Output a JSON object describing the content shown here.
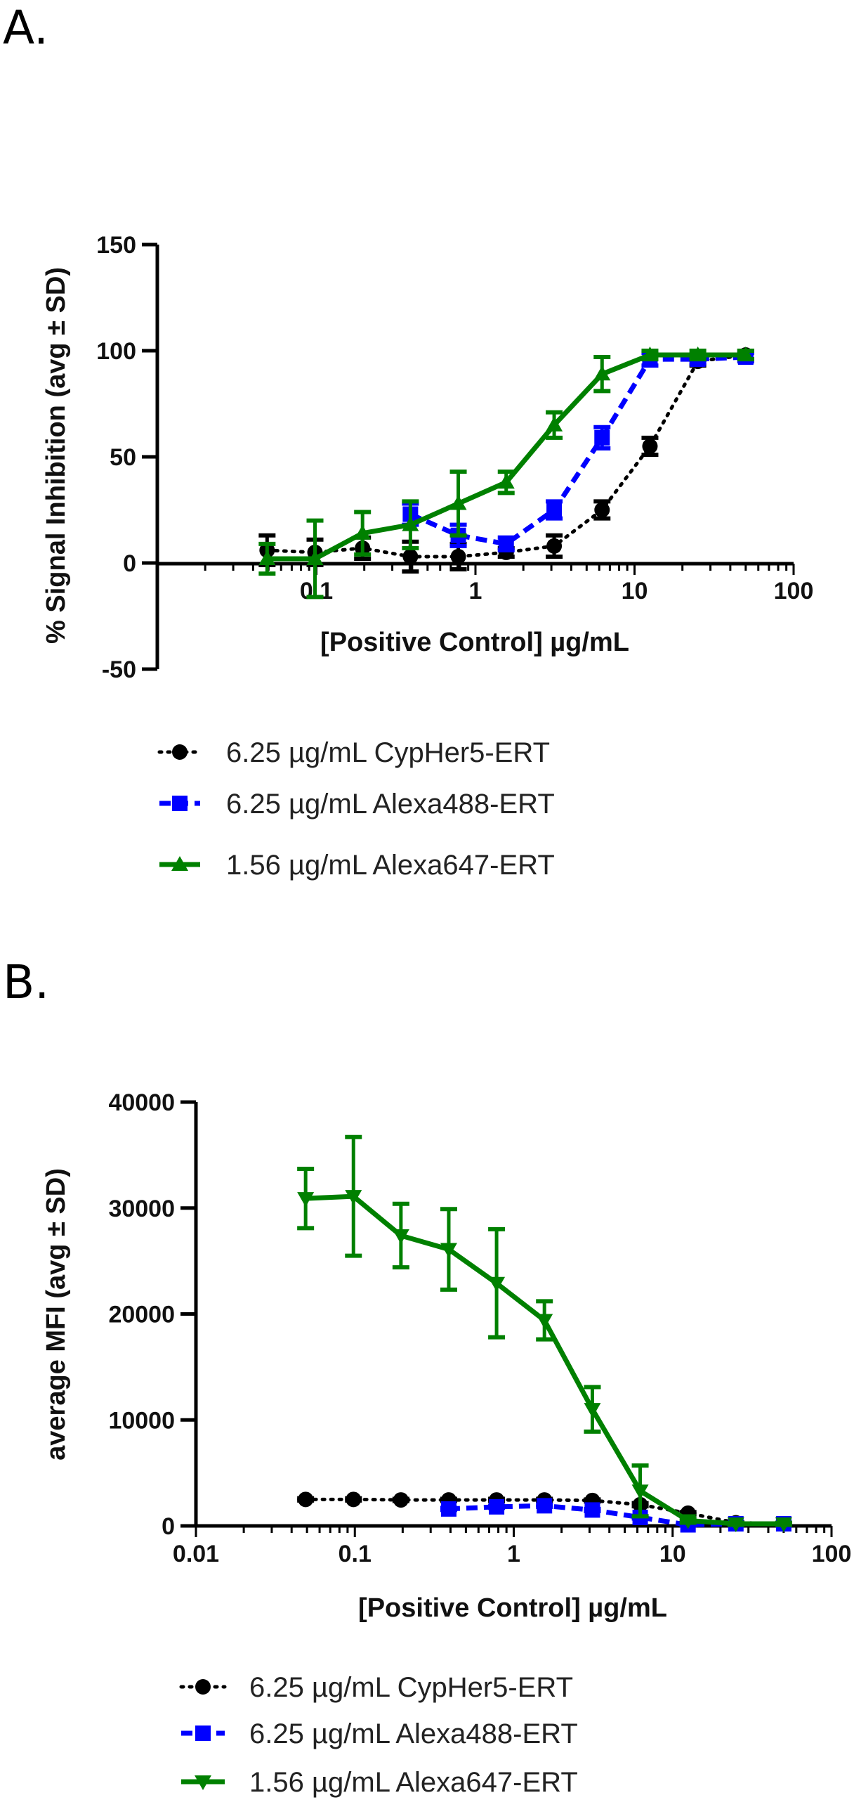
{
  "chart_data": [
    {
      "panel_label": "A.",
      "type": "line",
      "xscale": "log",
      "xlim": [
        0.01,
        100
      ],
      "ylim": [
        -50,
        150
      ],
      "xticks": [
        "0.1",
        "1",
        "10",
        "100"
      ],
      "yticks": [
        "150",
        "100",
        "50",
        "0",
        "-50"
      ],
      "xlabel": "[Positive Control] µg/mL",
      "ylabel": "% Signal Inhibition (avg ± SD)",
      "grid": false,
      "legend_position": "bottom",
      "series": [
        {
          "name": "6.25 µg/mL CypHer5-ERT",
          "color": "#000000",
          "marker": "circle",
          "line": "dotted",
          "x": [
            0.049,
            0.098,
            0.195,
            0.39,
            0.78,
            1.56,
            3.125,
            6.25,
            12.5,
            25,
            50
          ],
          "y": [
            6,
            5,
            7,
            3,
            3,
            5,
            8,
            25,
            55,
            95,
            98
          ],
          "sd": [
            7,
            6,
            5,
            7,
            6,
            2,
            5,
            4,
            4,
            2,
            2
          ]
        },
        {
          "name": "6.25 µg/mL Alexa488-ERT",
          "color": "#0000ff",
          "marker": "square",
          "line": "dashed",
          "x": [
            0.39,
            0.78,
            1.56,
            3.125,
            6.25,
            12.5,
            25,
            50
          ],
          "y": [
            23,
            13,
            9,
            25,
            59,
            96,
            96,
            97
          ],
          "sd": [
            5,
            5,
            3,
            4,
            5,
            3,
            2,
            2
          ]
        },
        {
          "name": "1.56 µg/mL Alexa647-ERT",
          "color": "#008000",
          "marker": "triangle-up",
          "line": "solid",
          "x": [
            0.049,
            0.098,
            0.195,
            0.39,
            0.78,
            1.56,
            3.125,
            6.25,
            12.5,
            25,
            50
          ],
          "y": [
            2,
            2,
            14,
            18,
            28,
            38,
            65,
            89,
            98,
            98,
            98
          ],
          "sd": [
            7,
            18,
            10,
            11,
            15,
            5,
            6,
            8,
            2,
            2,
            2
          ]
        }
      ]
    },
    {
      "panel_label": "B.",
      "type": "line",
      "xscale": "log",
      "xlim": [
        0.01,
        100
      ],
      "ylim": [
        0,
        40000
      ],
      "xticks": [
        "0.01",
        "0.1",
        "1",
        "10",
        "100"
      ],
      "yticks": [
        "40000",
        "30000",
        "20000",
        "10000",
        "0"
      ],
      "xlabel": "[Positive Control] µg/mL",
      "ylabel": "average MFI (avg ± SD)",
      "grid": false,
      "legend_position": "bottom",
      "series": [
        {
          "name": "6.25 µg/mL CypHer5-ERT",
          "color": "#000000",
          "marker": "circle",
          "line": "dotted",
          "x": [
            0.049,
            0.098,
            0.195,
            0.39,
            0.78,
            1.56,
            3.125,
            6.25,
            12.5,
            25,
            50
          ],
          "y": [
            2500,
            2500,
            2450,
            2450,
            2450,
            2450,
            2400,
            2000,
            1200,
            300,
            200
          ],
          "sd": [
            100,
            100,
            100,
            100,
            100,
            100,
            100,
            150,
            100,
            50,
            50
          ]
        },
        {
          "name": "6.25 µg/mL Alexa488-ERT",
          "color": "#0000ff",
          "marker": "square",
          "line": "dashed",
          "x": [
            0.39,
            0.78,
            1.56,
            3.125,
            6.25,
            12.5,
            25,
            50
          ],
          "y": [
            1600,
            1800,
            1900,
            1500,
            800,
            100,
            200,
            200
          ],
          "sd": [
            100,
            100,
            100,
            100,
            100,
            50,
            50,
            50
          ]
        },
        {
          "name": "1.56 µg/mL Alexa647-ERT",
          "color": "#008000",
          "marker": "triangle-down",
          "line": "solid",
          "x": [
            0.049,
            0.098,
            0.195,
            0.39,
            0.78,
            1.56,
            3.125,
            6.25,
            12.5,
            25,
            50
          ],
          "y": [
            30900,
            31100,
            27400,
            26100,
            22900,
            19400,
            11000,
            3300,
            500,
            200,
            200
          ],
          "sd": [
            2800,
            5600,
            3000,
            3800,
            5100,
            1800,
            2100,
            2400,
            200,
            100,
            100
          ]
        }
      ]
    }
  ]
}
